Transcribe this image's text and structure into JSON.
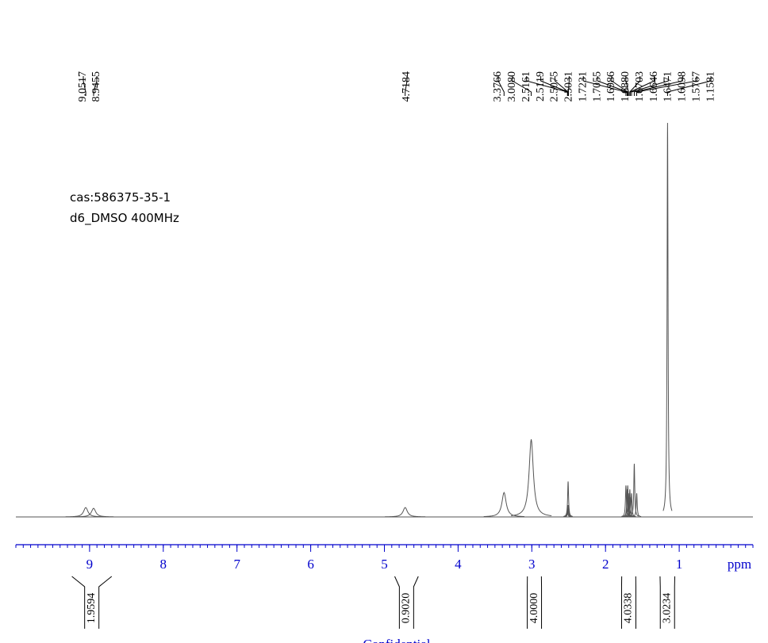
{
  "chart_data": {
    "type": "spectrum",
    "annotations": [
      "cas:586375-35-1",
      "d6_DMSO 400MHz"
    ],
    "x_label": "ppm",
    "footer": "Confidential",
    "x": [
      9.0517,
      8.9455,
      4.7184,
      3.3766,
      3.008,
      2.5161,
      2.5119,
      2.5075,
      2.5031,
      1.7231,
      1.7055,
      1.6986,
      1.688,
      1.6703,
      1.6646,
      1.6471,
      1.6098,
      1.5767,
      1.1581
    ],
    "x_labels": [
      "9.0517",
      "8.9455",
      "4.7184",
      "3.3766",
      "3.0080",
      "2.5161",
      "2.5119",
      "2.5075",
      "2.5031",
      "1.7231",
      "1.7055",
      "1.6986",
      "1.6880",
      "1.6703",
      "1.6646",
      "1.6471",
      "1.6098",
      "1.5767",
      "1.1581"
    ],
    "values": [
      2.4,
      2.2,
      2.4,
      6.2,
      19.7,
      1.5,
      3,
      9,
      3,
      8,
      7,
      8,
      6,
      7,
      5,
      6,
      13.5,
      6,
      100
    ],
    "ylim": [
      0,
      100
    ],
    "xlim": [
      10,
      0
    ],
    "xticks": [
      9,
      8,
      7,
      6,
      5,
      4,
      3,
      2,
      1
    ],
    "minor_tick_step": 0.1,
    "integral_ranges": [
      [
        9.24,
        8.7
      ],
      [
        4.86,
        4.54
      ],
      [
        3.06,
        2.87
      ],
      [
        1.78,
        1.59
      ],
      [
        1.26,
        1.06
      ]
    ],
    "integral_values": [
      1.9594,
      0.902,
      4,
      4.0338,
      3.0234
    ],
    "integral_labels": [
      "1.9594",
      "0.9020",
      "4.0000",
      "4.0338",
      "3.0234"
    ],
    "color": "#555555",
    "axis_color": "#0000cc"
  }
}
